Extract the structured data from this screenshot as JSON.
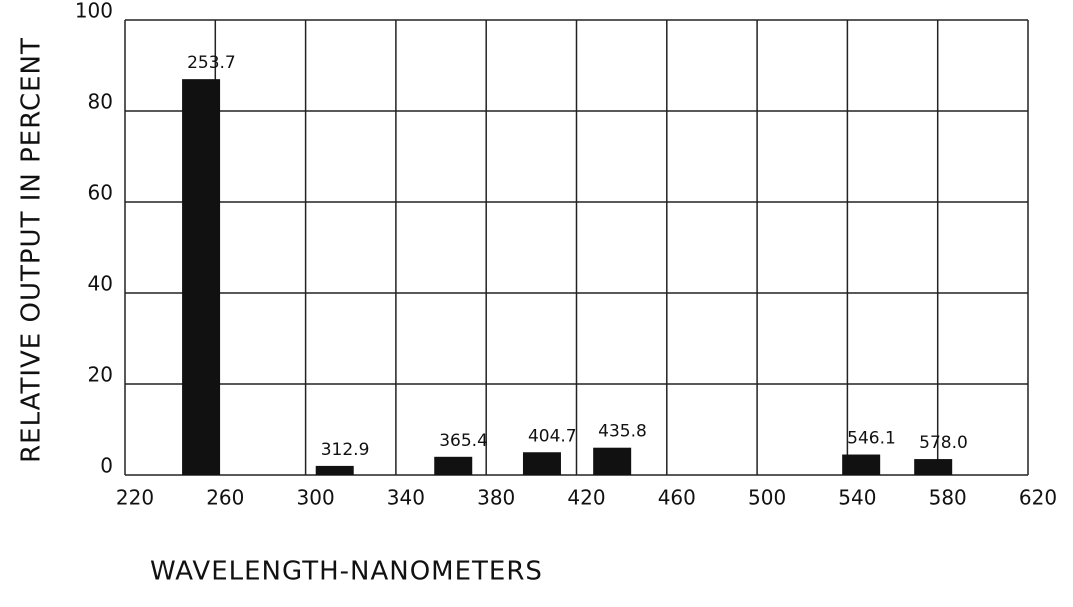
{
  "chart_data": {
    "type": "bar",
    "x_label": "WAVELENGTH-NANOMETERS",
    "y_label": "RELATIVE OUTPUT IN PERCENT",
    "x": [
      253.7,
      312.9,
      365.4,
      404.7,
      435.8,
      546.1,
      {
        "value": 578,
        "label": "578.0"
      }
    ],
    "values": [
      87,
      2,
      4,
      5,
      6,
      4.5,
      3.5
    ],
    "color": "#111111",
    "xlim": [
      220,
      620
    ],
    "xticks": [
      220,
      260,
      300,
      340,
      380,
      420,
      460,
      500,
      540,
      580,
      620
    ],
    "ylim": [
      0,
      100
    ],
    "yticks": [
      0,
      20,
      40,
      60,
      80,
      100
    ],
    "grid": true
  }
}
